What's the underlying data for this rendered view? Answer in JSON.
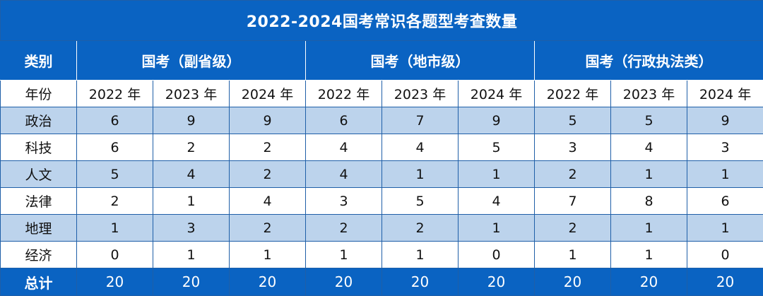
{
  "title": "2022-2024国考常识各题型考查数量",
  "category_header": "类别",
  "year_header": "年份",
  "groups": [
    "国考（副省级）",
    "国考（地市级）",
    "国考（行政执法类）"
  ],
  "years": [
    "2022 年",
    "2023 年",
    "2024 年",
    "2022 年",
    "2023 年",
    "2024 年",
    "2022 年",
    "2023 年",
    "2024 年"
  ],
  "rows": [
    {
      "label": "政治",
      "values": [
        "6",
        "9",
        "9",
        "6",
        "7",
        "9",
        "5",
        "5",
        "9"
      ]
    },
    {
      "label": "科技",
      "values": [
        "6",
        "2",
        "2",
        "4",
        "4",
        "5",
        "3",
        "4",
        "3"
      ]
    },
    {
      "label": "人文",
      "values": [
        "5",
        "4",
        "2",
        "4",
        "1",
        "1",
        "2",
        "1",
        "1"
      ]
    },
    {
      "label": "法律",
      "values": [
        "2",
        "1",
        "4",
        "3",
        "5",
        "4",
        "7",
        "8",
        "6"
      ]
    },
    {
      "label": "地理",
      "values": [
        "1",
        "3",
        "2",
        "2",
        "2",
        "1",
        "2",
        "1",
        "1"
      ]
    },
    {
      "label": "经济",
      "values": [
        "0",
        "1",
        "1",
        "1",
        "1",
        "0",
        "1",
        "1",
        "0"
      ]
    }
  ],
  "total": {
    "label": "总计",
    "values": [
      "20",
      "20",
      "20",
      "20",
      "20",
      "20",
      "20",
      "20",
      "20"
    ]
  },
  "colors": {
    "header": "#0a63c2",
    "shade": "#bcd3ec",
    "border": "#1f5fa8"
  }
}
